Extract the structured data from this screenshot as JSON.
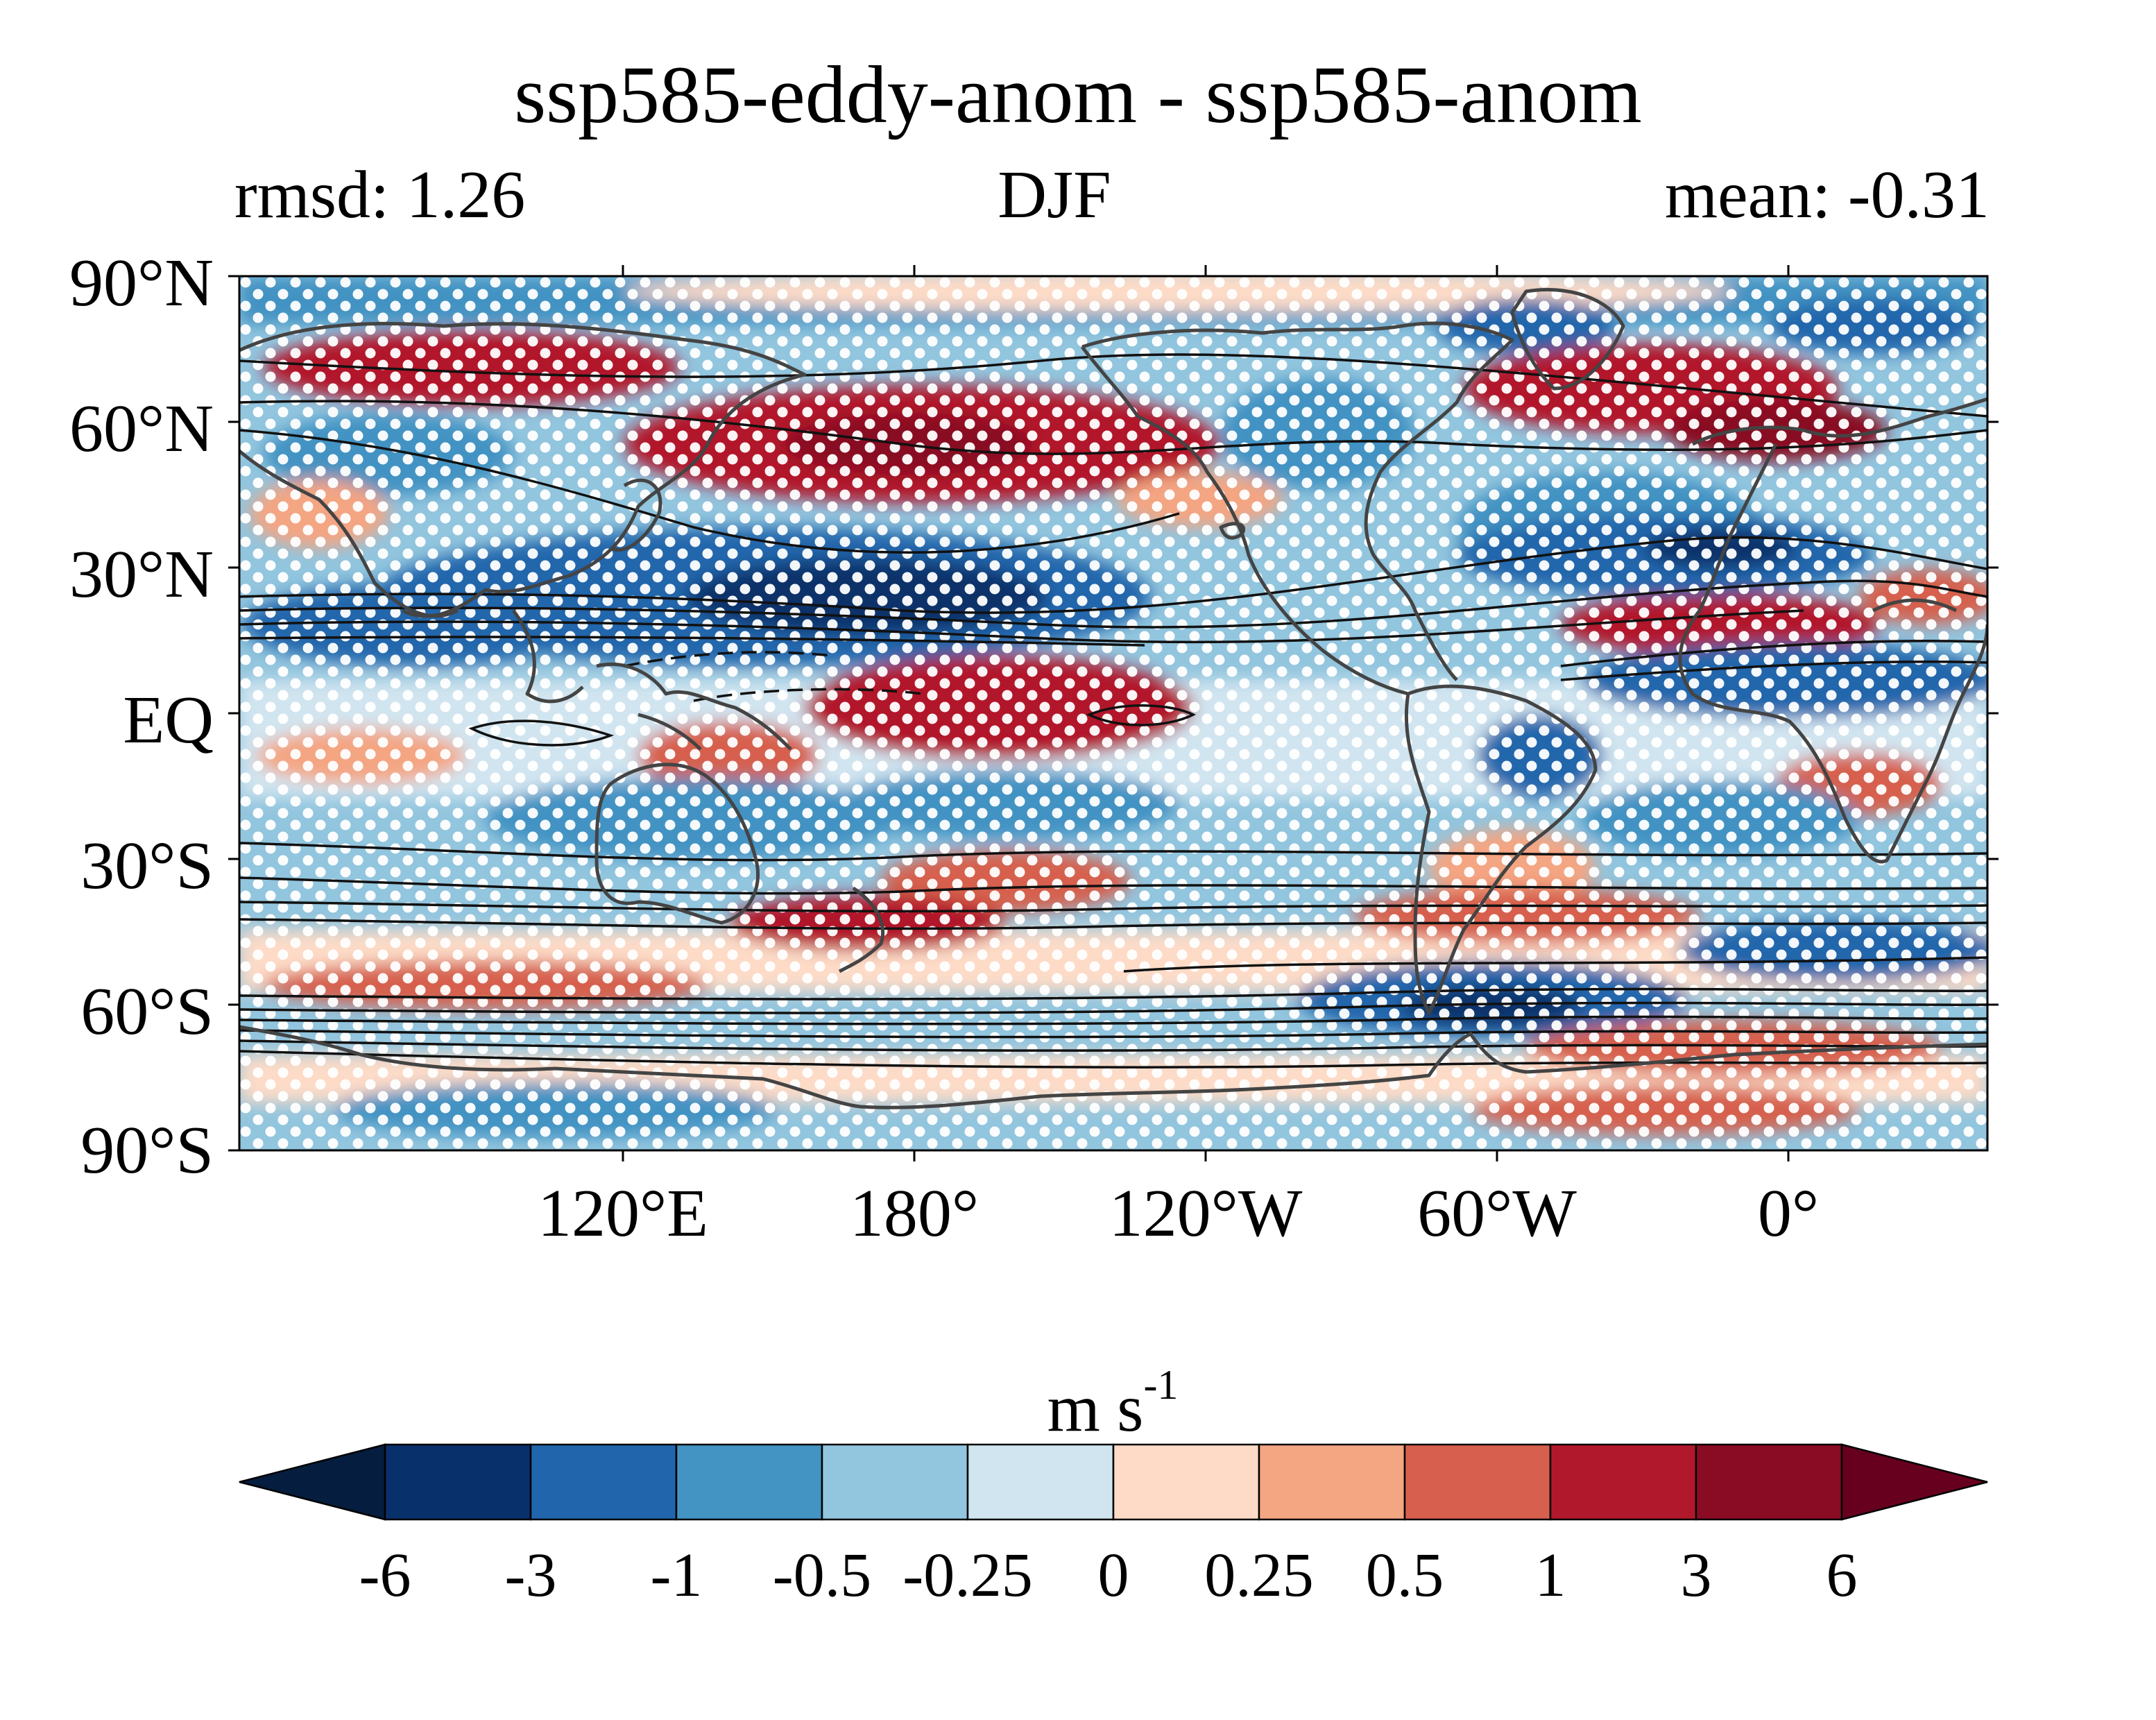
{
  "title": "ssp585-eddy-anom - ssp585-anom",
  "stats": {
    "left": "rmsd: 1.26",
    "center": "DJF",
    "right": "mean: -0.31"
  },
  "map": {
    "y_ticks": [
      "90°N",
      "60°N",
      "30°N",
      "EQ",
      "30°S",
      "60°S",
      "90°S"
    ],
    "x_ticks": [
      "120°E",
      "180°",
      "120°W",
      "60°W",
      "0°"
    ],
    "lon_range": [
      39,
      399
    ],
    "lat_range": [
      -90,
      90
    ]
  },
  "colorbar": {
    "units_base": "m s",
    "units_exp": "-1",
    "levels": [
      "-6",
      "-3",
      "-1",
      "-0.5",
      "-0.25",
      "0",
      "0.25",
      "0.5",
      "1",
      "3",
      "6"
    ],
    "colors": [
      "#08306b",
      "#2166ac",
      "#4393c3",
      "#92c5de",
      "#d1e5f0",
      "#fddbc7",
      "#f4a582",
      "#d6604d",
      "#b2182b",
      "#890c24"
    ],
    "under_color": "#051d3e",
    "over_color": "#67001f"
  },
  "field_colors": {
    "dark_blue": "#08306b",
    "blue": "#2166ac",
    "mid_blue": "#4393c3",
    "light_blue": "#92c5de",
    "pale_blue": "#d1e5f0",
    "pale_red": "#fddbc7",
    "light_red": "#f4a582",
    "mid_red": "#d6604d",
    "red": "#b2182b",
    "dark_red": "#890c24",
    "stipple": "#ffffff",
    "coast": "#444444",
    "contour": "#111111"
  }
}
